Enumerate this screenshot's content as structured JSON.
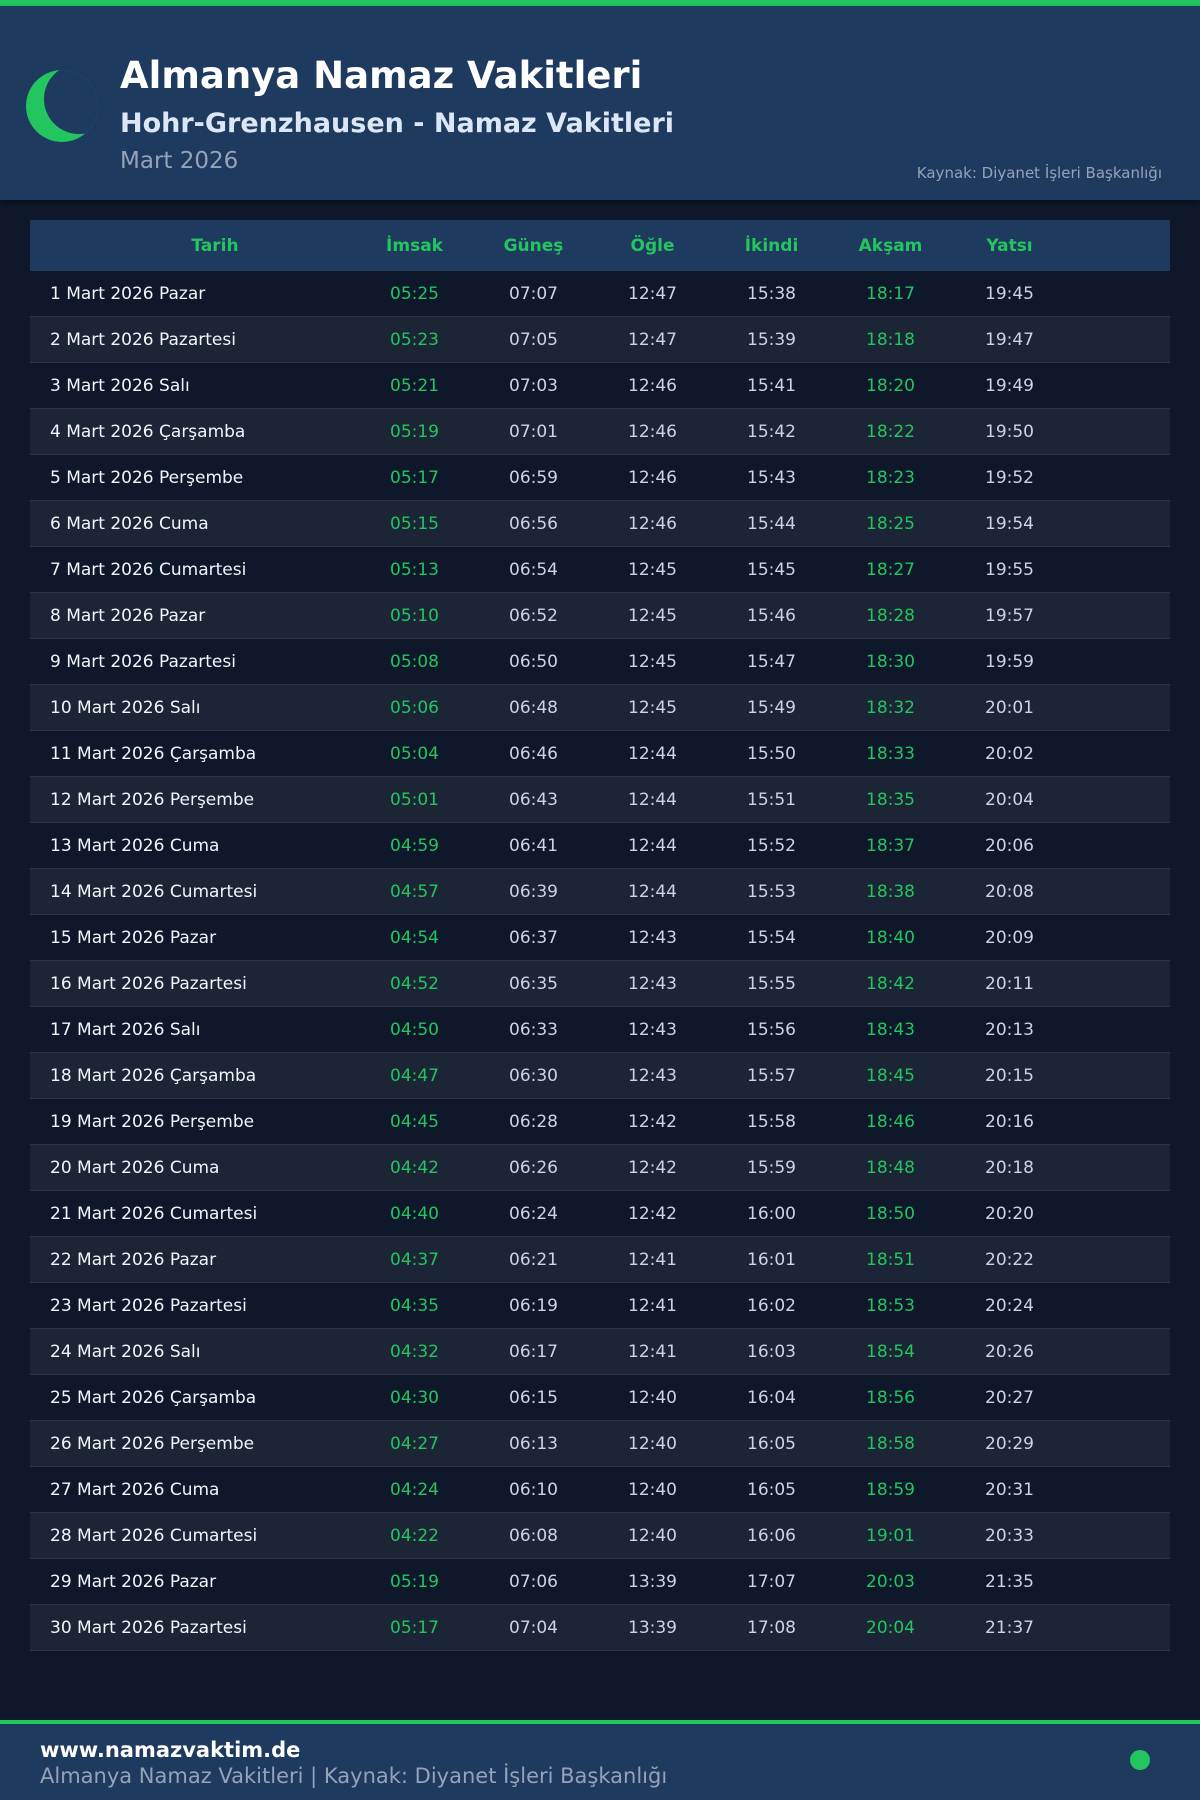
{
  "header": {
    "title": "Almanya Namaz Vakitleri",
    "subtitle": "Hohr-Grenzhausen - Namaz Vakitleri",
    "month": "Mart 2026",
    "source": "Kaynak: Diyanet İşleri Başkanlığı"
  },
  "colors": {
    "accent": "#22c55e",
    "header_bg": "#1e3a5f",
    "page_bg": "#0f172a"
  },
  "table": {
    "columns": [
      "Tarih",
      "İmsak",
      "Güneş",
      "Öğle",
      "İkindi",
      "Akşam",
      "Yatsı"
    ],
    "rows": [
      [
        "1 Mart 2026 Pazar",
        "05:25",
        "07:07",
        "12:47",
        "15:38",
        "18:17",
        "19:45"
      ],
      [
        "2 Mart 2026 Pazartesi",
        "05:23",
        "07:05",
        "12:47",
        "15:39",
        "18:18",
        "19:47"
      ],
      [
        "3 Mart 2026 Salı",
        "05:21",
        "07:03",
        "12:46",
        "15:41",
        "18:20",
        "19:49"
      ],
      [
        "4 Mart 2026 Çarşamba",
        "05:19",
        "07:01",
        "12:46",
        "15:42",
        "18:22",
        "19:50"
      ],
      [
        "5 Mart 2026 Perşembe",
        "05:17",
        "06:59",
        "12:46",
        "15:43",
        "18:23",
        "19:52"
      ],
      [
        "6 Mart 2026 Cuma",
        "05:15",
        "06:56",
        "12:46",
        "15:44",
        "18:25",
        "19:54"
      ],
      [
        "7 Mart 2026 Cumartesi",
        "05:13",
        "06:54",
        "12:45",
        "15:45",
        "18:27",
        "19:55"
      ],
      [
        "8 Mart 2026 Pazar",
        "05:10",
        "06:52",
        "12:45",
        "15:46",
        "18:28",
        "19:57"
      ],
      [
        "9 Mart 2026 Pazartesi",
        "05:08",
        "06:50",
        "12:45",
        "15:47",
        "18:30",
        "19:59"
      ],
      [
        "10 Mart 2026 Salı",
        "05:06",
        "06:48",
        "12:45",
        "15:49",
        "18:32",
        "20:01"
      ],
      [
        "11 Mart 2026 Çarşamba",
        "05:04",
        "06:46",
        "12:44",
        "15:50",
        "18:33",
        "20:02"
      ],
      [
        "12 Mart 2026 Perşembe",
        "05:01",
        "06:43",
        "12:44",
        "15:51",
        "18:35",
        "20:04"
      ],
      [
        "13 Mart 2026 Cuma",
        "04:59",
        "06:41",
        "12:44",
        "15:52",
        "18:37",
        "20:06"
      ],
      [
        "14 Mart 2026 Cumartesi",
        "04:57",
        "06:39",
        "12:44",
        "15:53",
        "18:38",
        "20:08"
      ],
      [
        "15 Mart 2026 Pazar",
        "04:54",
        "06:37",
        "12:43",
        "15:54",
        "18:40",
        "20:09"
      ],
      [
        "16 Mart 2026 Pazartesi",
        "04:52",
        "06:35",
        "12:43",
        "15:55",
        "18:42",
        "20:11"
      ],
      [
        "17 Mart 2026 Salı",
        "04:50",
        "06:33",
        "12:43",
        "15:56",
        "18:43",
        "20:13"
      ],
      [
        "18 Mart 2026 Çarşamba",
        "04:47",
        "06:30",
        "12:43",
        "15:57",
        "18:45",
        "20:15"
      ],
      [
        "19 Mart 2026 Perşembe",
        "04:45",
        "06:28",
        "12:42",
        "15:58",
        "18:46",
        "20:16"
      ],
      [
        "20 Mart 2026 Cuma",
        "04:42",
        "06:26",
        "12:42",
        "15:59",
        "18:48",
        "20:18"
      ],
      [
        "21 Mart 2026 Cumartesi",
        "04:40",
        "06:24",
        "12:42",
        "16:00",
        "18:50",
        "20:20"
      ],
      [
        "22 Mart 2026 Pazar",
        "04:37",
        "06:21",
        "12:41",
        "16:01",
        "18:51",
        "20:22"
      ],
      [
        "23 Mart 2026 Pazartesi",
        "04:35",
        "06:19",
        "12:41",
        "16:02",
        "18:53",
        "20:24"
      ],
      [
        "24 Mart 2026 Salı",
        "04:32",
        "06:17",
        "12:41",
        "16:03",
        "18:54",
        "20:26"
      ],
      [
        "25 Mart 2026 Çarşamba",
        "04:30",
        "06:15",
        "12:40",
        "16:04",
        "18:56",
        "20:27"
      ],
      [
        "26 Mart 2026 Perşembe",
        "04:27",
        "06:13",
        "12:40",
        "16:05",
        "18:58",
        "20:29"
      ],
      [
        "27 Mart 2026 Cuma",
        "04:24",
        "06:10",
        "12:40",
        "16:05",
        "18:59",
        "20:31"
      ],
      [
        "28 Mart 2026 Cumartesi",
        "04:22",
        "06:08",
        "12:40",
        "16:06",
        "19:01",
        "20:33"
      ],
      [
        "29 Mart 2026 Pazar",
        "05:19",
        "07:06",
        "13:39",
        "17:07",
        "20:03",
        "21:35"
      ],
      [
        "30 Mart 2026 Pazartesi",
        "05:17",
        "07:04",
        "13:39",
        "17:08",
        "20:04",
        "21:37"
      ]
    ]
  },
  "footer": {
    "site": "www.namazvaktim.de",
    "text": "Almanya Namaz Vakitleri | Kaynak: Diyanet İşleri Başkanlığı",
    "status_icon": "green-dot"
  }
}
